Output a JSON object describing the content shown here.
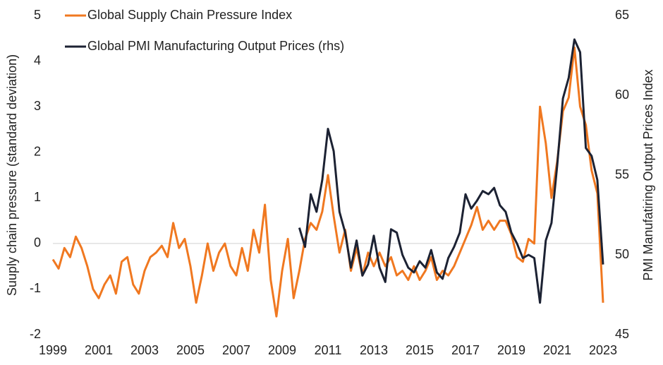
{
  "chart_data": {
    "type": "line",
    "x": [
      1999,
      1999.25,
      1999.5,
      1999.75,
      2000,
      2000.25,
      2000.5,
      2000.75,
      2001,
      2001.25,
      2001.5,
      2001.75,
      2002,
      2002.25,
      2002.5,
      2002.75,
      2003,
      2003.25,
      2003.5,
      2003.75,
      2004,
      2004.25,
      2004.5,
      2004.75,
      2005,
      2005.25,
      2005.5,
      2005.75,
      2006,
      2006.25,
      2006.5,
      2006.75,
      2007,
      2007.25,
      2007.5,
      2007.75,
      2008,
      2008.25,
      2008.5,
      2008.75,
      2009,
      2009.25,
      2009.5,
      2009.75,
      2010,
      2010.25,
      2010.5,
      2010.75,
      2011,
      2011.25,
      2011.5,
      2011.75,
      2012,
      2012.25,
      2012.5,
      2012.75,
      2013,
      2013.25,
      2013.5,
      2013.75,
      2014,
      2014.25,
      2014.5,
      2014.75,
      2015,
      2015.25,
      2015.5,
      2015.75,
      2016,
      2016.25,
      2016.5,
      2016.75,
      2017,
      2017.25,
      2017.5,
      2017.75,
      2018,
      2018.25,
      2018.5,
      2018.75,
      2019,
      2019.25,
      2019.5,
      2019.75,
      2020,
      2020.25,
      2020.5,
      2020.75,
      2021,
      2021.25,
      2021.5,
      2021.75,
      2022,
      2022.25,
      2022.5,
      2022.75,
      2023
    ],
    "series": [
      {
        "name": "Global Supply Chain Pressure Index",
        "color": "#f07820",
        "values": [
          -0.35,
          -0.55,
          -0.1,
          -0.3,
          0.15,
          -0.1,
          -0.5,
          -1.0,
          -1.2,
          -0.9,
          -0.7,
          -1.1,
          -0.4,
          -0.3,
          -0.9,
          -1.1,
          -0.6,
          -0.3,
          -0.2,
          -0.05,
          -0.3,
          0.45,
          -0.1,
          0.1,
          -0.5,
          -1.3,
          -0.7,
          0.0,
          -0.6,
          -0.2,
          0.0,
          -0.5,
          -0.7,
          -0.1,
          -0.6,
          0.3,
          -0.2,
          0.85,
          -0.8,
          -1.6,
          -0.6,
          0.1,
          -1.2,
          -0.6,
          0.1,
          0.45,
          0.3,
          0.7,
          1.5,
          0.6,
          -0.2,
          0.3,
          -0.6,
          -0.1,
          -0.7,
          -0.2,
          -0.5,
          -0.2,
          -0.5,
          -0.3,
          -0.7,
          -0.6,
          -0.8,
          -0.5,
          -0.8,
          -0.6,
          -0.3,
          -0.8,
          -0.6,
          -0.7,
          -0.5,
          -0.2,
          0.1,
          0.4,
          0.8,
          0.3,
          0.5,
          0.3,
          0.5,
          0.5,
          0.2,
          -0.3,
          -0.4,
          0.1,
          0.0,
          3.0,
          2.2,
          1.0,
          1.8,
          2.9,
          3.2,
          4.3,
          3.0,
          2.6,
          1.6,
          1.1,
          -1.3
        ]
      },
      {
        "name": "Global PMI Manufacturing Output Prices (rhs)",
        "color": "#1c2233",
        "axis": "y2",
        "values": [
          null,
          null,
          null,
          null,
          null,
          null,
          null,
          null,
          null,
          null,
          null,
          null,
          null,
          null,
          null,
          null,
          null,
          null,
          null,
          null,
          null,
          null,
          null,
          null,
          null,
          null,
          null,
          null,
          null,
          null,
          null,
          null,
          null,
          null,
          null,
          null,
          null,
          null,
          null,
          null,
          null,
          null,
          null,
          51.7,
          50.5,
          53.8,
          52.7,
          54.7,
          57.9,
          56.5,
          52.7,
          51.4,
          49.2,
          50.9,
          48.7,
          49.4,
          51.2,
          49.2,
          48.3,
          51.6,
          51.4,
          50.0,
          49.2,
          48.9,
          49.6,
          49.2,
          50.3,
          48.9,
          48.5,
          49.8,
          50.5,
          51.4,
          53.8,
          52.9,
          53.4,
          54.0,
          53.8,
          54.2,
          53.1,
          52.7,
          51.4,
          50.7,
          49.8,
          50.0,
          49.8,
          47.0,
          50.9,
          52.0,
          55.6,
          59.8,
          61.1,
          63.5,
          62.7,
          56.7,
          56.2,
          54.7,
          49.4
        ]
      }
    ],
    "y_label": "Suuply chain pressure (standard deviation)",
    "y2_label": "PMI Manufatiring Output  Prices Index",
    "xlim": [
      1999,
      2023
    ],
    "xticks": [
      1999,
      2001,
      2003,
      2005,
      2007,
      2009,
      2011,
      2013,
      2015,
      2017,
      2019,
      2021,
      2023
    ],
    "ylim": [
      -2,
      5
    ],
    "yticks": [
      -2,
      -1,
      0,
      1,
      2,
      3,
      4,
      5
    ],
    "y2lim": [
      45,
      65
    ],
    "y2ticks": [
      45,
      50,
      55,
      60,
      65
    ],
    "zero_line": true,
    "legend": "top-left"
  }
}
